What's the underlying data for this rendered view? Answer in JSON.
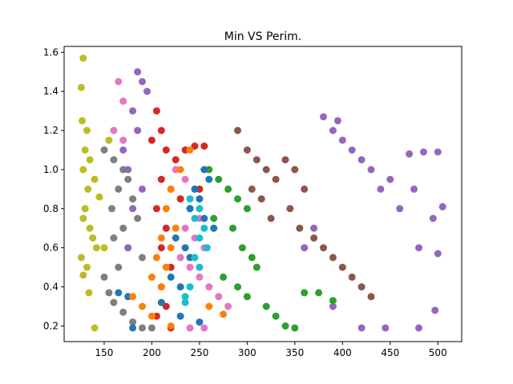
{
  "chart_data": {
    "type": "scatter",
    "title": "Min VS Perim.",
    "xlabel": "",
    "ylabel": "",
    "xlim": [
      108,
      525
    ],
    "ylim": [
      0.12,
      1.63
    ],
    "xticks": [
      150,
      200,
      250,
      300,
      350,
      400,
      450,
      500
    ],
    "yticks": [
      0.2,
      0.4,
      0.6,
      0.8,
      1.0,
      1.2,
      1.4,
      1.6
    ],
    "grid": false,
    "series": [
      {
        "color": "#bcbd22",
        "points": [
          [
            128,
            1.57
          ],
          [
            126,
            1.42
          ],
          [
            127,
            1.25
          ],
          [
            132,
            1.2
          ],
          [
            130,
            1.1
          ],
          [
            135,
            1.05
          ],
          [
            128,
            1.0
          ],
          [
            140,
            0.95
          ],
          [
            133,
            0.9
          ],
          [
            145,
            0.86
          ],
          [
            130,
            0.8
          ],
          [
            128,
            0.75
          ],
          [
            135,
            0.7
          ],
          [
            138,
            0.65
          ],
          [
            142,
            0.6
          ],
          [
            126,
            0.55
          ],
          [
            132,
            0.5
          ],
          [
            128,
            0.46
          ],
          [
            134,
            0.37
          ],
          [
            140,
            0.19
          ],
          [
            150,
            0.6
          ],
          [
            155,
            1.15
          ]
        ]
      },
      {
        "color": "#7f7f7f",
        "points": [
          [
            150,
            1.1
          ],
          [
            160,
            1.05
          ],
          [
            170,
            1.0
          ],
          [
            175,
            0.95
          ],
          [
            165,
            0.9
          ],
          [
            180,
            0.85
          ],
          [
            158,
            0.8
          ],
          [
            185,
            0.75
          ],
          [
            170,
            0.7
          ],
          [
            160,
            0.65
          ],
          [
            175,
            0.6
          ],
          [
            190,
            0.55
          ],
          [
            165,
            0.5
          ],
          [
            150,
            0.45
          ],
          [
            155,
            0.37
          ],
          [
            160,
            0.32
          ],
          [
            170,
            0.27
          ],
          [
            180,
            0.22
          ],
          [
            190,
            0.19
          ],
          [
            200,
            0.19
          ]
        ]
      },
      {
        "color": "#9467bd",
        "points": [
          [
            185,
            1.5
          ],
          [
            190,
            1.45
          ],
          [
            195,
            1.4
          ],
          [
            180,
            1.3
          ],
          [
            185,
            1.2
          ],
          [
            170,
            1.1
          ],
          [
            175,
            1.0
          ],
          [
            190,
            0.9
          ],
          [
            180,
            0.8
          ],
          [
            175,
            0.6
          ],
          [
            380,
            1.27
          ],
          [
            390,
            1.2
          ],
          [
            400,
            1.15
          ],
          [
            410,
            1.1
          ],
          [
            395,
            1.25
          ],
          [
            420,
            1.05
          ],
          [
            430,
            1.0
          ],
          [
            440,
            0.9
          ],
          [
            450,
            0.95
          ],
          [
            460,
            0.8
          ],
          [
            470,
            1.08
          ],
          [
            485,
            1.09
          ],
          [
            500,
            1.09
          ],
          [
            475,
            0.9
          ],
          [
            495,
            0.75
          ],
          [
            480,
            0.6
          ],
          [
            505,
            0.81
          ],
          [
            500,
            0.57
          ],
          [
            497,
            0.28
          ],
          [
            445,
            0.19
          ],
          [
            480,
            0.19
          ],
          [
            420,
            0.19
          ],
          [
            390,
            0.3
          ],
          [
            370,
            0.7
          ],
          [
            360,
            0.6
          ]
        ]
      },
      {
        "color": "#8c564b",
        "points": [
          [
            290,
            1.2
          ],
          [
            300,
            1.1
          ],
          [
            310,
            1.05
          ],
          [
            320,
            1.0
          ],
          [
            330,
            0.95
          ],
          [
            340,
            1.05
          ],
          [
            350,
            1.0
          ],
          [
            360,
            0.9
          ],
          [
            345,
            0.8
          ],
          [
            355,
            0.7
          ],
          [
            370,
            0.65
          ],
          [
            380,
            0.6
          ],
          [
            390,
            0.55
          ],
          [
            400,
            0.5
          ],
          [
            410,
            0.45
          ],
          [
            420,
            0.4
          ],
          [
            430,
            0.35
          ],
          [
            305,
            0.9
          ],
          [
            315,
            0.85
          ],
          [
            325,
            0.75
          ]
        ]
      },
      {
        "color": "#2ca02c",
        "points": [
          [
            260,
            1.0
          ],
          [
            270,
            0.95
          ],
          [
            280,
            0.9
          ],
          [
            290,
            0.85
          ],
          [
            300,
            0.8
          ],
          [
            265,
            0.75
          ],
          [
            285,
            0.7
          ],
          [
            295,
            0.6
          ],
          [
            305,
            0.55
          ],
          [
            310,
            0.5
          ],
          [
            275,
            0.45
          ],
          [
            290,
            0.4
          ],
          [
            300,
            0.35
          ],
          [
            320,
            0.3
          ],
          [
            330,
            0.25
          ],
          [
            340,
            0.2
          ],
          [
            350,
            0.19
          ],
          [
            360,
            0.37
          ],
          [
            375,
            0.37
          ],
          [
            390,
            0.33
          ]
        ]
      },
      {
        "color": "#e377c2",
        "points": [
          [
            165,
            1.45
          ],
          [
            170,
            1.35
          ],
          [
            160,
            1.2
          ],
          [
            170,
            1.15
          ],
          [
            225,
            1.0
          ],
          [
            235,
            0.95
          ],
          [
            245,
            0.9
          ],
          [
            230,
            0.85
          ],
          [
            240,
            0.8
          ],
          [
            250,
            0.75
          ],
          [
            235,
            0.7
          ],
          [
            245,
            0.65
          ],
          [
            255,
            0.6
          ],
          [
            230,
            0.55
          ],
          [
            240,
            0.5
          ],
          [
            250,
            0.45
          ],
          [
            260,
            0.4
          ],
          [
            270,
            0.35
          ],
          [
            280,
            0.3
          ],
          [
            240,
            0.19
          ],
          [
            255,
            0.19
          ]
        ]
      },
      {
        "color": "#d62728",
        "points": [
          [
            205,
            1.3
          ],
          [
            210,
            1.2
          ],
          [
            200,
            1.15
          ],
          [
            215,
            1.1
          ],
          [
            225,
            1.05
          ],
          [
            235,
            1.1
          ],
          [
            245,
            1.12
          ],
          [
            255,
            1.12
          ],
          [
            210,
            0.95
          ],
          [
            220,
            0.9
          ],
          [
            205,
            0.8
          ],
          [
            215,
            0.7
          ],
          [
            210,
            0.6
          ],
          [
            220,
            0.5
          ],
          [
            210,
            0.4
          ],
          [
            215,
            0.3
          ],
          [
            205,
            0.25
          ],
          [
            220,
            0.19
          ],
          [
            230,
            0.85
          ],
          [
            250,
            0.9
          ]
        ]
      },
      {
        "color": "#1f77b4",
        "points": [
          [
            255,
            1.0
          ],
          [
            260,
            0.95
          ],
          [
            245,
            0.9
          ],
          [
            250,
            0.85
          ],
          [
            240,
            0.8
          ],
          [
            255,
            0.75
          ],
          [
            265,
            0.7
          ],
          [
            225,
            0.65
          ],
          [
            235,
            0.6
          ],
          [
            240,
            0.55
          ],
          [
            220,
            0.45
          ],
          [
            230,
            0.4
          ],
          [
            165,
            0.37
          ],
          [
            175,
            0.35
          ],
          [
            210,
            0.32
          ],
          [
            230,
            0.25
          ],
          [
            250,
            0.22
          ],
          [
            180,
            0.19
          ]
        ]
      },
      {
        "color": "#ff7f0e",
        "points": [
          [
            240,
            1.1
          ],
          [
            230,
            1.0
          ],
          [
            220,
            0.9
          ],
          [
            215,
            0.8
          ],
          [
            225,
            0.7
          ],
          [
            210,
            0.65
          ],
          [
            220,
            0.6
          ],
          [
            205,
            0.55
          ],
          [
            215,
            0.5
          ],
          [
            200,
            0.45
          ],
          [
            210,
            0.4
          ],
          [
            180,
            0.35
          ],
          [
            190,
            0.3
          ],
          [
            200,
            0.25
          ],
          [
            220,
            0.2
          ],
          [
            260,
            0.3
          ],
          [
            275,
            0.26
          ]
        ]
      },
      {
        "color": "#17becf",
        "points": [
          [
            240,
            0.85
          ],
          [
            250,
            0.8
          ],
          [
            245,
            0.75
          ],
          [
            255,
            0.7
          ],
          [
            250,
            0.65
          ],
          [
            258,
            0.6
          ],
          [
            245,
            0.55
          ],
          [
            250,
            0.5
          ],
          [
            240,
            0.4
          ],
          [
            235,
            0.35
          ],
          [
            235,
            0.32
          ]
        ]
      }
    ]
  }
}
